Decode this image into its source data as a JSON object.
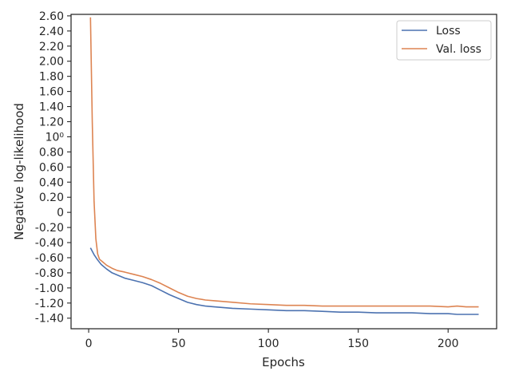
{
  "chart_data": {
    "type": "line",
    "title": "",
    "xlabel": "Epochs",
    "ylabel": "Negative log-likelihood",
    "xlim": [
      -9.8,
      227.0
    ],
    "ylim": [
      -1.54,
      2.62
    ],
    "x_ticks": [
      0,
      50,
      100,
      150,
      200
    ],
    "y_ticks": [
      {
        "value": 2.6,
        "label": "2.60"
      },
      {
        "value": 2.4,
        "label": "2.40"
      },
      {
        "value": 2.2,
        "label": "2.20"
      },
      {
        "value": 2.0,
        "label": "2.00"
      },
      {
        "value": 1.8,
        "label": "1.80"
      },
      {
        "value": 1.6,
        "label": "1.60"
      },
      {
        "value": 1.4,
        "label": "1.40"
      },
      {
        "value": 1.2,
        "label": "1.20"
      },
      {
        "value": 1.0,
        "label": "10⁰"
      },
      {
        "value": 0.8,
        "label": "0.80"
      },
      {
        "value": 0.6,
        "label": "0.60"
      },
      {
        "value": 0.4,
        "label": "0.40"
      },
      {
        "value": 0.2,
        "label": "0.20"
      },
      {
        "value": 0.0,
        "label": "0"
      },
      {
        "value": -0.2,
        "label": "-0.20"
      },
      {
        "value": -0.4,
        "label": "-0.40"
      },
      {
        "value": -0.6,
        "label": "-0.60"
      },
      {
        "value": -0.8,
        "label": "-0.80"
      },
      {
        "value": -1.0,
        "label": "-1.00"
      },
      {
        "value": -1.2,
        "label": "-1.20"
      },
      {
        "value": -1.4,
        "label": "-1.40"
      }
    ],
    "grid": false,
    "legend_position": "top-right",
    "series": [
      {
        "name": "Loss",
        "color": "#4c72b0",
        "x": [
          1,
          3,
          5,
          7,
          10,
          13,
          16,
          20,
          25,
          30,
          35,
          40,
          45,
          50,
          55,
          60,
          65,
          70,
          80,
          90,
          100,
          110,
          120,
          130,
          140,
          150,
          160,
          170,
          180,
          190,
          200,
          205,
          210,
          217
        ],
        "y": [
          -0.47,
          -0.56,
          -0.63,
          -0.69,
          -0.75,
          -0.8,
          -0.83,
          -0.87,
          -0.9,
          -0.93,
          -0.97,
          -1.03,
          -1.09,
          -1.14,
          -1.19,
          -1.22,
          -1.24,
          -1.25,
          -1.27,
          -1.28,
          -1.29,
          -1.3,
          -1.3,
          -1.31,
          -1.32,
          -1.32,
          -1.33,
          -1.33,
          -1.33,
          -1.34,
          -1.34,
          -1.35,
          -1.35,
          -1.35
        ]
      },
      {
        "name": "Val. loss",
        "color": "#dd8452",
        "x": [
          1,
          2,
          3,
          4,
          5,
          6,
          8,
          10,
          13,
          16,
          20,
          25,
          30,
          35,
          40,
          45,
          50,
          55,
          60,
          65,
          70,
          80,
          90,
          100,
          110,
          120,
          130,
          140,
          150,
          160,
          170,
          180,
          190,
          200,
          205,
          210,
          217
        ],
        "y": [
          2.58,
          1.2,
          0.15,
          -0.35,
          -0.55,
          -0.62,
          -0.66,
          -0.7,
          -0.74,
          -0.77,
          -0.79,
          -0.82,
          -0.85,
          -0.89,
          -0.94,
          -1.0,
          -1.06,
          -1.11,
          -1.14,
          -1.16,
          -1.17,
          -1.19,
          -1.21,
          -1.22,
          -1.23,
          -1.23,
          -1.24,
          -1.24,
          -1.24,
          -1.24,
          -1.24,
          -1.24,
          -1.24,
          -1.25,
          -1.24,
          -1.25,
          -1.25
        ]
      }
    ]
  }
}
